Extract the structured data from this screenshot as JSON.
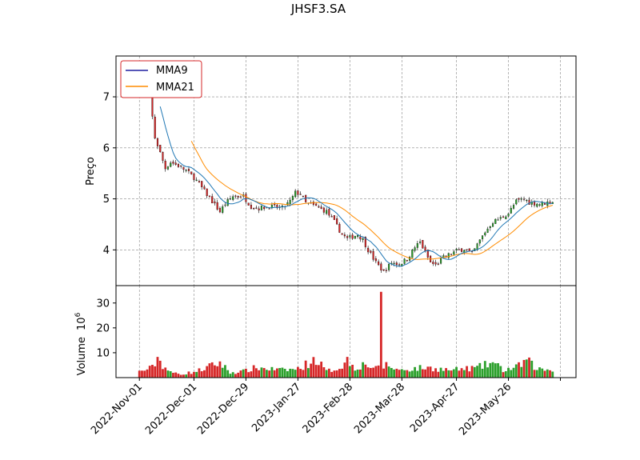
{
  "chart_data": {
    "type": "candlestick",
    "title": "JHSF3.SA",
    "price_panel": {
      "ylabel": "Preço",
      "ylim": [
        3.3,
        7.8
      ],
      "yticks": [
        4,
        5,
        6,
        7
      ],
      "grid": true,
      "legend": {
        "placement": "top-left",
        "entries": [
          {
            "label": "MMA9",
            "color": "#1f1fa0"
          },
          {
            "label": "MMA21",
            "color": "#ff8c00"
          }
        ]
      },
      "colors": {
        "up": "#2ca02c",
        "down": "#d62728",
        "wick": "#000000",
        "mma9": "#1f77b4",
        "mma21": "#ff8c00"
      }
    },
    "volume_panel": {
      "ylabel": "Volume",
      "scale_label": "10",
      "scale_exponent": "6",
      "ylim": [
        0,
        37
      ],
      "yticks": [
        10,
        20,
        30
      ]
    },
    "xaxis": {
      "tick_labels": [
        "2022-Nov-01",
        "2022-Dec-01",
        "2022-Dec-29",
        "2023-Jan-27",
        "2023-Feb-28",
        "2023-Mar-28",
        "2023-Apr-27",
        "2023-May-26"
      ],
      "tick_index": [
        0,
        21,
        41,
        61,
        81,
        101,
        122,
        142
      ],
      "extra_tick_index": [
        162
      ],
      "n_days": 160,
      "xlim": [
        -9,
        168
      ]
    },
    "price_anchors": [
      [
        0,
        7.5
      ],
      [
        2,
        7.3
      ],
      [
        4,
        7.1
      ],
      [
        5,
        6.6
      ],
      [
        6,
        6.2
      ],
      [
        8,
        5.9
      ],
      [
        10,
        5.6
      ],
      [
        12,
        5.72
      ],
      [
        15,
        5.65
      ],
      [
        18,
        5.55
      ],
      [
        21,
        5.42
      ],
      [
        24,
        5.22
      ],
      [
        28,
        4.95
      ],
      [
        31,
        4.75
      ],
      [
        33,
        4.9
      ],
      [
        36,
        5.05
      ],
      [
        40,
        5.05
      ],
      [
        43,
        4.85
      ],
      [
        46,
        4.82
      ],
      [
        50,
        4.85
      ],
      [
        55,
        4.82
      ],
      [
        58,
        4.95
      ],
      [
        60,
        5.12
      ],
      [
        62,
        5.1
      ],
      [
        64,
        4.92
      ],
      [
        68,
        4.85
      ],
      [
        72,
        4.75
      ],
      [
        75,
        4.55
      ],
      [
        78,
        4.3
      ],
      [
        80,
        4.22
      ],
      [
        84,
        4.3
      ],
      [
        86,
        4.2
      ],
      [
        88,
        4.0
      ],
      [
        91,
        3.75
      ],
      [
        94,
        3.57
      ],
      [
        97,
        3.75
      ],
      [
        100,
        3.72
      ],
      [
        103,
        3.82
      ],
      [
        106,
        4.05
      ],
      [
        108,
        4.15
      ],
      [
        110,
        3.95
      ],
      [
        112,
        3.75
      ],
      [
        114,
        3.7
      ],
      [
        117,
        3.85
      ],
      [
        119,
        3.9
      ],
      [
        122,
        3.98
      ],
      [
        125,
        4.02
      ],
      [
        128,
        3.92
      ],
      [
        130,
        4.1
      ],
      [
        133,
        4.35
      ],
      [
        136,
        4.55
      ],
      [
        139,
        4.62
      ],
      [
        142,
        4.72
      ],
      [
        145,
        4.95
      ],
      [
        148,
        5.0
      ],
      [
        150,
        4.93
      ],
      [
        154,
        4.9
      ],
      [
        159,
        4.95
      ]
    ],
    "volume_anchors": [
      [
        0,
        2.4
      ],
      [
        5,
        4
      ],
      [
        7,
        8
      ],
      [
        9,
        5
      ],
      [
        12,
        2
      ],
      [
        17,
        1.5
      ],
      [
        22,
        2.5
      ],
      [
        31,
        6
      ],
      [
        35,
        2
      ],
      [
        40,
        2.5
      ],
      [
        45,
        4
      ],
      [
        55,
        3
      ],
      [
        61,
        3.5
      ],
      [
        68,
        7.5
      ],
      [
        72,
        2.5
      ],
      [
        77,
        4
      ],
      [
        80,
        7
      ],
      [
        83,
        4
      ],
      [
        87,
        5.5
      ],
      [
        91,
        3.5
      ],
      [
        95,
        5
      ],
      [
        100,
        3
      ],
      [
        110,
        4
      ],
      [
        120,
        3
      ],
      [
        130,
        4
      ],
      [
        136,
        6
      ],
      [
        140,
        3
      ],
      [
        145,
        4
      ],
      [
        149,
        7
      ],
      [
        153,
        3.5
      ],
      [
        159,
        3
      ]
    ],
    "volume_spike": {
      "index": 93,
      "value": 34.5
    },
    "seed": 7
  }
}
